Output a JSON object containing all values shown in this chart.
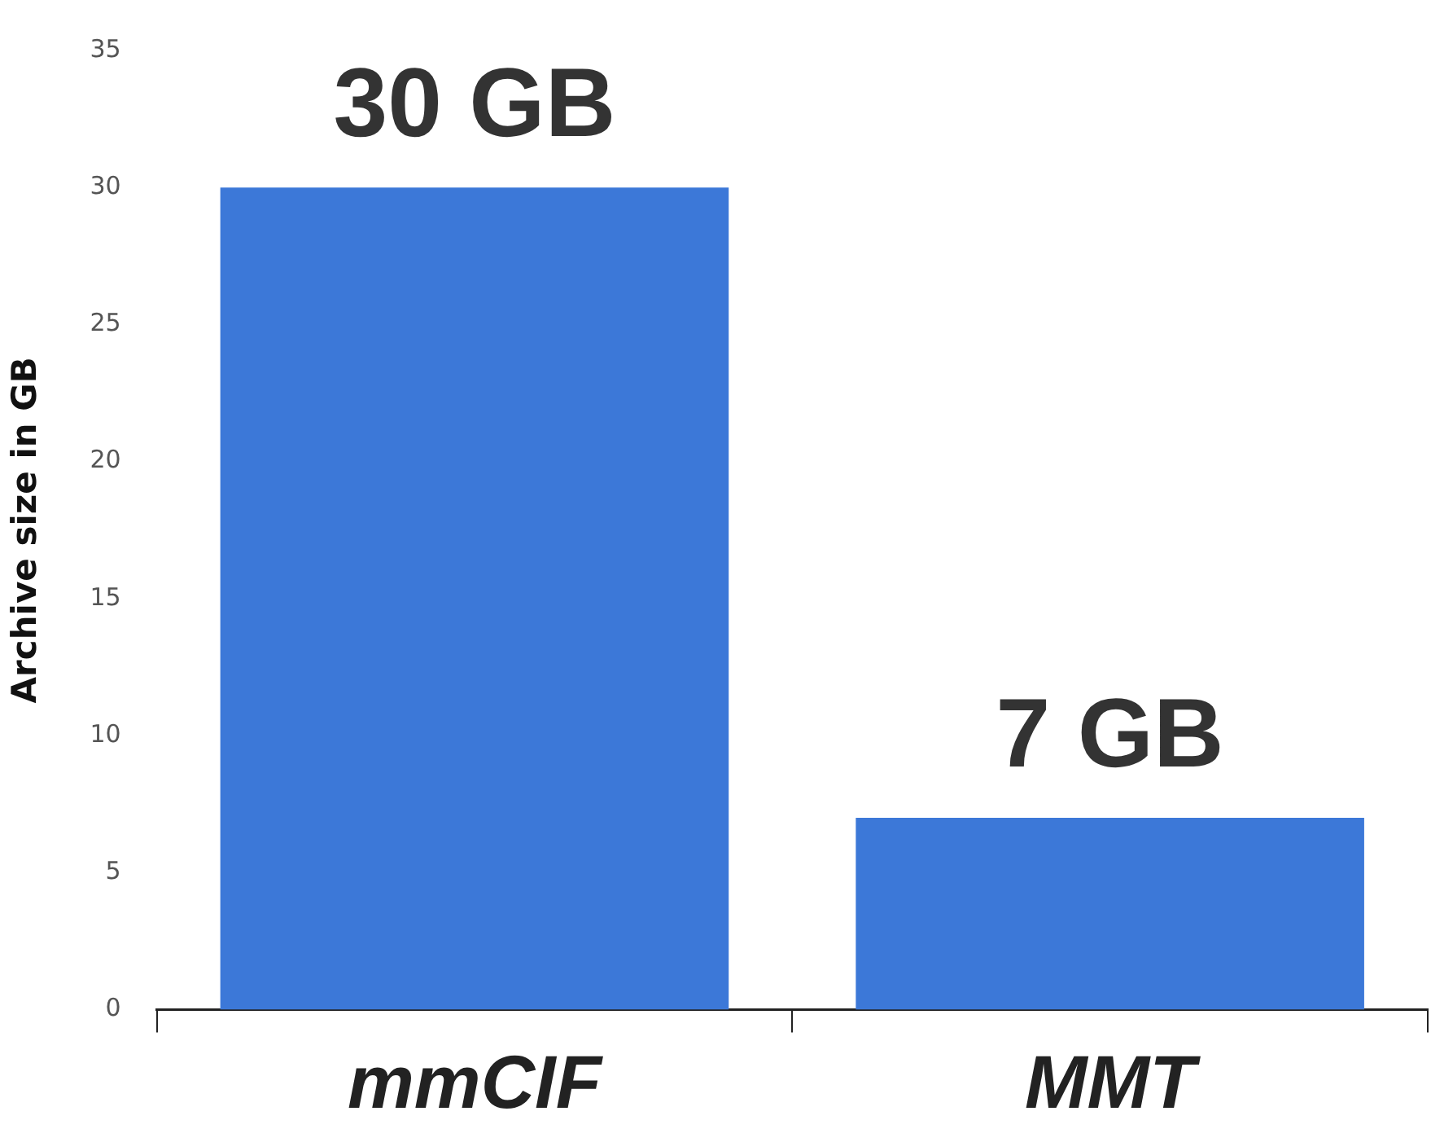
{
  "chart_data": {
    "type": "bar",
    "ylabel": "Archive size in GB",
    "categories": [
      "mmCIF",
      "MMT"
    ],
    "values": [
      30,
      7
    ],
    "value_labels": [
      "30 GB",
      "7 GB"
    ],
    "color": "#3c78d8",
    "ylim": [
      0,
      35
    ],
    "yticks": [
      0,
      5,
      10,
      15,
      20,
      25,
      30,
      35
    ],
    "grid": false,
    "legend": false
  }
}
